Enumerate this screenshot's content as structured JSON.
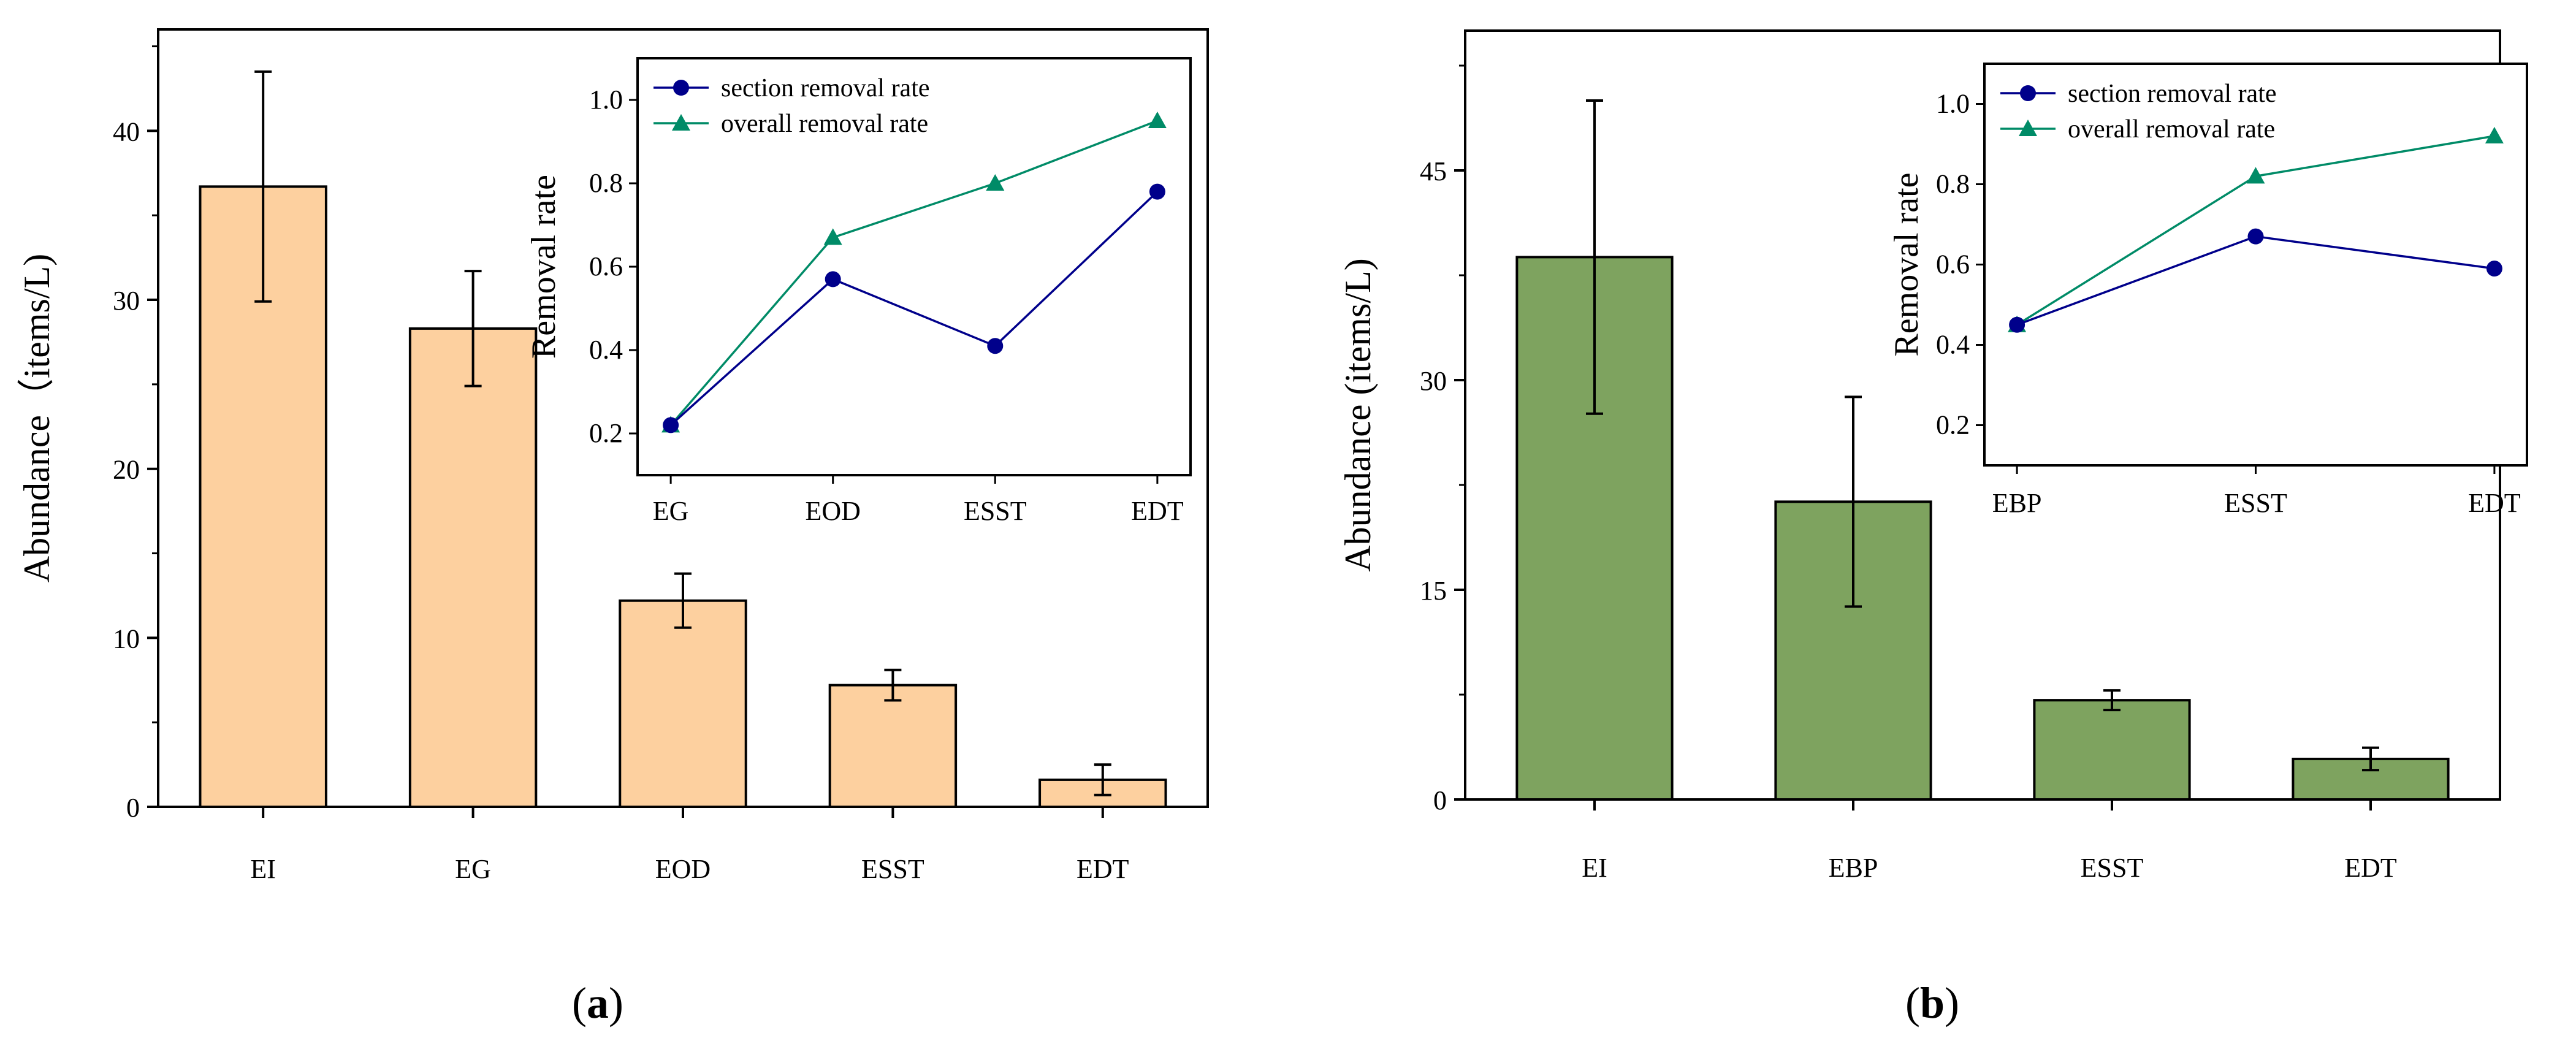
{
  "chart_data": [
    {
      "panel": "a",
      "type": "bar",
      "categories": [
        "EI",
        "EG",
        "EOD",
        "ESST",
        "EDT"
      ],
      "values": [
        36.7,
        28.3,
        12.2,
        7.2,
        1.6
      ],
      "errors": [
        6.8,
        3.4,
        1.6,
        0.9,
        0.9
      ],
      "ylabel": "Abundance（items/L)",
      "ylim": [
        0,
        46
      ],
      "yticks": [
        0,
        10,
        20,
        30,
        40
      ],
      "bar_color": "#fdd09f",
      "inset": {
        "type": "line",
        "categories": [
          "EG",
          "EOD",
          "ESST",
          "EDT"
        ],
        "ylabel": "Removal rate",
        "ylim": [
          0.1,
          1.1
        ],
        "yticks": [
          0.2,
          0.4,
          0.6,
          0.8,
          1.0
        ],
        "legend_position": "top-left",
        "series": [
          {
            "name": "section removal rate",
            "marker": "circle",
            "color": "#00008b",
            "values": [
              0.22,
              0.57,
              0.41,
              0.78
            ]
          },
          {
            "name": "overall removal rate",
            "marker": "triangle",
            "color": "#008b67",
            "values": [
              0.22,
              0.67,
              0.8,
              0.95
            ]
          }
        ]
      },
      "label": "a"
    },
    {
      "panel": "b",
      "type": "bar",
      "categories": [
        "EI",
        "EBP",
        "ESST",
        "EDT"
      ],
      "values": [
        38.8,
        21.3,
        7.1,
        2.9
      ],
      "errors": [
        11.2,
        7.5,
        0.7,
        0.8
      ],
      "ylabel": "Abundance (items/L)",
      "ylim": [
        0,
        55
      ],
      "yticks": [
        0,
        15,
        30,
        45
      ],
      "bar_color": "#7ea35f",
      "inset": {
        "type": "line",
        "categories": [
          "EBP",
          "ESST",
          "EDT"
        ],
        "ylabel": "Removal rate",
        "ylim": [
          0.1,
          1.1
        ],
        "yticks": [
          0.2,
          0.4,
          0.6,
          0.8,
          1.0
        ],
        "legend_position": "top-left",
        "series": [
          {
            "name": "section removal rate",
            "marker": "circle",
            "color": "#00008b",
            "values": [
              0.45,
              0.67,
              0.59
            ]
          },
          {
            "name": "overall removal rate",
            "marker": "triangle",
            "color": "#008b67",
            "values": [
              0.45,
              0.82,
              0.92
            ]
          }
        ]
      },
      "label": "b"
    }
  ]
}
